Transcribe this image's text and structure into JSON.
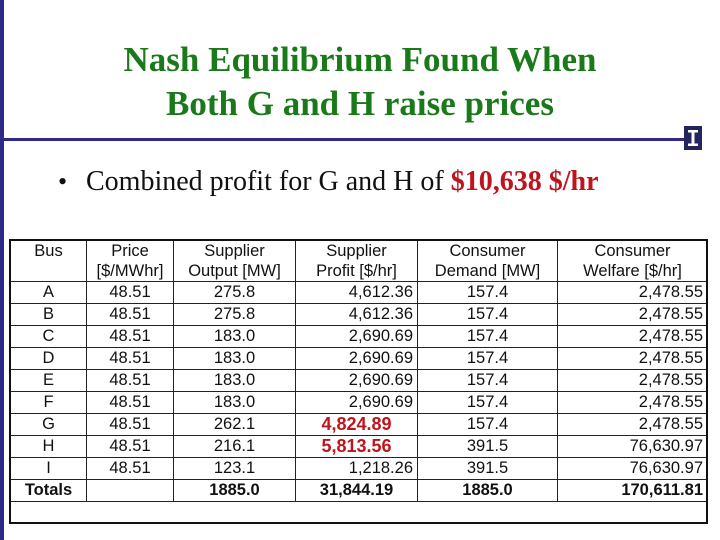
{
  "slide": {
    "title_line1": "Nash Equilibrium Found When",
    "title_line2": "Both G and H raise prices",
    "bullet_prefix": "Combined profit for G and H of ",
    "bullet_value": "$10,638 $/hr",
    "logo_icon": "illinois-i-icon"
  },
  "colors": {
    "title": "#1a7a1a",
    "accent_rule": "#2e2a8a",
    "highlight": "#c0141d"
  },
  "table": {
    "headers": [
      [
        "Bus",
        ""
      ],
      [
        "Price",
        "[$/MWhr]"
      ],
      [
        "Supplier",
        "Output [MW]"
      ],
      [
        "Supplier",
        "Profit [$/hr]"
      ],
      [
        "Consumer",
        "Demand [MW]"
      ],
      [
        "Consumer",
        "Welfare [$/hr]"
      ]
    ],
    "rows": [
      [
        "A",
        "48.51",
        "275.8",
        "4,612.36",
        "157.4",
        "2,478.55"
      ],
      [
        "B",
        "48.51",
        "275.8",
        "4,612.36",
        "157.4",
        "2,478.55"
      ],
      [
        "C",
        "48.51",
        "183.0",
        "2,690.69",
        "157.4",
        "2,478.55"
      ],
      [
        "D",
        "48.51",
        "183.0",
        "2,690.69",
        "157.4",
        "2,478.55"
      ],
      [
        "E",
        "48.51",
        "183.0",
        "2,690.69",
        "157.4",
        "2,478.55"
      ],
      [
        "F",
        "48.51",
        "183.0",
        "2,690.69",
        "157.4",
        "2,478.55"
      ],
      [
        "G",
        "48.51",
        "262.1",
        "4,824.89",
        "157.4",
        "2,478.55"
      ],
      [
        "H",
        "48.51",
        "216.1",
        "5,813.56",
        "391.5",
        "76,630.97"
      ],
      [
        "I",
        "48.51",
        "123.1",
        "1,218.26",
        "391.5",
        "76,630.97"
      ]
    ],
    "totals": [
      "Totals",
      "",
      "1885.0",
      "31,844.19",
      "1885.0",
      "170,611.81"
    ]
  }
}
